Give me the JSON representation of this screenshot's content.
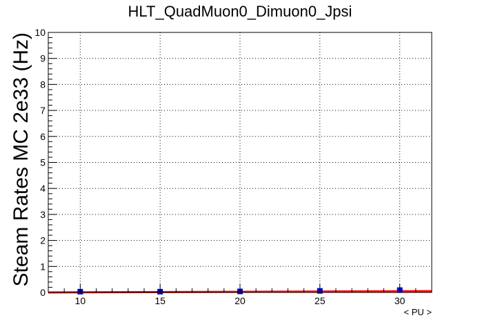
{
  "chart_data": {
    "type": "scatter",
    "title": "HLT_QuadMuon0_Dimuon0_Jpsi",
    "xlabel": "< PU >",
    "ylabel": "Steam Rates MC 2e33 (Hz)",
    "xlim": [
      8,
      32
    ],
    "ylim": [
      0,
      10
    ],
    "xticks": [
      10,
      15,
      20,
      25,
      30
    ],
    "yticks": [
      0,
      1,
      2,
      3,
      4,
      5,
      6,
      7,
      8,
      9,
      10
    ],
    "grid": true,
    "series": [
      {
        "marker": "square",
        "color": "#0000cc",
        "points": [
          {
            "x": 10,
            "y": 0.03
          },
          {
            "x": 15,
            "y": 0.03
          },
          {
            "x": 20,
            "y": 0.04
          },
          {
            "x": 25,
            "y": 0.06
          },
          {
            "x": 30,
            "y": 0.09
          }
        ]
      }
    ],
    "fit": {
      "type": "line",
      "color": "#ff0000",
      "y_at_xmin": 0.0,
      "y_at_xmax": 0.05
    }
  }
}
